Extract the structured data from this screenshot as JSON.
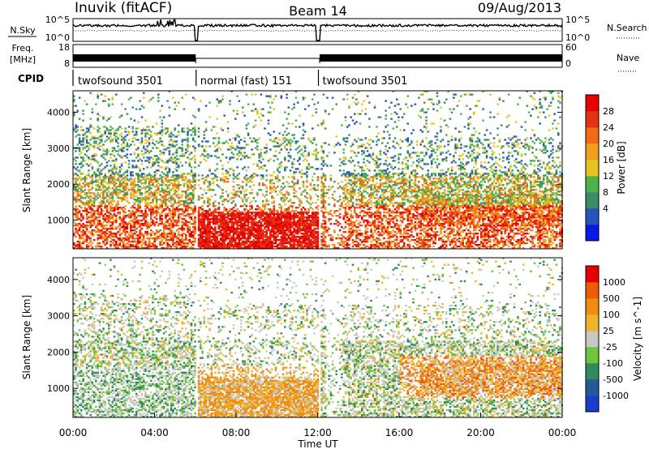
{
  "header": {
    "station": "Inuvik (fitACF)",
    "beam": "Beam 14",
    "date": "09/Aug/2013"
  },
  "top_panels": {
    "nsky_label": "N.Sky",
    "nsky_ticks": [
      "10^5",
      "10^0"
    ],
    "nsearch_label": "N.Search",
    "nsearch_ticks": [
      "10^5",
      "10^0"
    ],
    "freq_label": "Freq.",
    "freq_unit": "[MHz]",
    "freq_ticks": [
      "18",
      "8"
    ],
    "nave_label": "Nave",
    "nave_ticks": [
      "60",
      "0"
    ],
    "cpid_label": "CPID",
    "cpid_segments": [
      {
        "label": "twofsound 3501",
        "start_h": 0,
        "end_h": 6
      },
      {
        "label": "normal (fast) 151",
        "start_h": 6,
        "end_h": 12
      },
      {
        "label": "twofsound 3501",
        "start_h": 12,
        "end_h": 24
      }
    ]
  },
  "chart_data": [
    {
      "type": "heatmap",
      "title": "",
      "quantity": "Power",
      "xlabel": "",
      "ylabel": "Slant Range [km]",
      "x_range_hours": [
        0,
        24
      ],
      "ylim": [
        200,
        4600
      ],
      "y_ticks": [
        "1000",
        "2000",
        "3000",
        "4000"
      ],
      "colorbar": {
        "label": "Power [dB]",
        "ticks": [
          "28",
          "24",
          "20",
          "16",
          "12",
          "8",
          "4"
        ],
        "colors": [
          "#0a18e6",
          "#2655b8",
          "#3b8c67",
          "#4cb34b",
          "#e6c31e",
          "#f0a01e",
          "#f26a14",
          "#e63214",
          "#e60000"
        ]
      }
    },
    {
      "type": "heatmap",
      "title": "",
      "quantity": "Velocity",
      "xlabel": "Time UT",
      "ylabel": "Slant Range [km]",
      "x_range_hours": [
        0,
        24
      ],
      "x_ticks": [
        "00:00",
        "04:00",
        "08:00",
        "12:00",
        "16:00",
        "20:00",
        "00:00"
      ],
      "ylim": [
        200,
        4600
      ],
      "y_ticks": [
        "1000",
        "2000",
        "3000",
        "4000"
      ],
      "colorbar": {
        "label": "Velocity [m s^-1]",
        "ticks": [
          "1000",
          "500",
          "100",
          "25",
          "-25",
          "-100",
          "-500",
          "-1000"
        ],
        "colors": [
          "#1a3ec8",
          "#245a99",
          "#2f8a5e",
          "#6ec43c",
          "#c8c8c0",
          "#f0b428",
          "#f08c14",
          "#f05a0a",
          "#e60000"
        ]
      }
    }
  ]
}
